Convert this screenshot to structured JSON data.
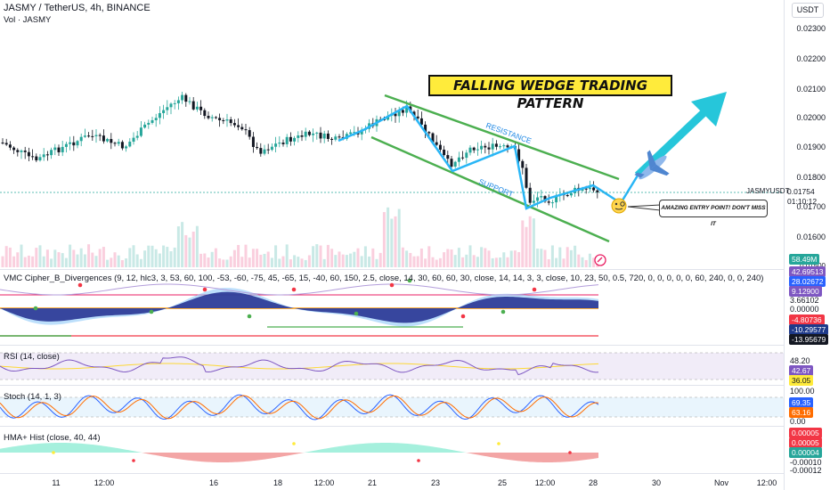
{
  "header": {
    "symbol_line": "JASMY / TetherUS, 4h, BINANCE",
    "vol_line": "Vol · JASMY"
  },
  "currency_button": "USDT",
  "annotations": {
    "title": "FALLING WEDGE TRADING PATTERN",
    "resistance": "RESISTANCE",
    "support": "SUPPORT",
    "callout": "AMAZING ENTRY POINT! DON'T MISS IT"
  },
  "price_axis": {
    "ticks": [
      "0.02300",
      "0.02200",
      "0.02100",
      "0.02000",
      "0.01900",
      "0.01800",
      "0.01700",
      "0.01600",
      "0.01500"
    ],
    "symbol_label": "JASMYUSDT",
    "last_price": "0.01754",
    "countdown": "01:10:12",
    "volume_tag": "58.49M"
  },
  "indicators": {
    "vmc": {
      "label": "VMC Cipher_B_Divergences (9, 12, hlc3, 3, 53, 60, 100, -53, -60, -75, 45, -65, 15, -40, 60, 150, 2.5, close, 14, 30, 60, 60, 30, close, 14, 14, 3, 3, close, 10, 23, 50, 0.5, 720, 0, 0, 0, 0, 0, 60, 240, 0, 0, 240)",
      "tags": [
        "42.69513",
        "28.02672",
        "9.12900",
        "3.66102",
        "0.00000",
        "-4.80736",
        "-10.29577",
        "-13.95679"
      ]
    },
    "rsi": {
      "label": "RSI (14, close)",
      "tags": [
        "48.20",
        "42.67",
        "36.05"
      ]
    },
    "stoch": {
      "label": "Stoch (14, 1, 3)",
      "tags": [
        "100.00",
        "69.35",
        "63.16",
        "0.00"
      ]
    },
    "hma": {
      "label": "HMA+ Hist (close, 40, 44)",
      "tags": [
        "0.00005",
        "0.00005",
        "0.00004",
        "-0.00010",
        "-0.00012"
      ]
    }
  },
  "time_axis": [
    "11",
    "12:00",
    "16",
    "18",
    "12:00",
    "21",
    "23",
    "25",
    "12:00",
    "28",
    "30",
    "Nov",
    "12:00"
  ],
  "colors": {
    "up": "#26a69a",
    "down": "#131722",
    "wedge": "#4caf50",
    "path": "#29b6f6",
    "arrow": "#26c6da",
    "vmc_wave": "#283593",
    "rsi": "#7e57c2",
    "stoch_k": "#2962ff",
    "stoch_d": "#ff6d00",
    "hma_pos": "#a5f0dd",
    "hma_neg": "#f3a5a5"
  }
}
